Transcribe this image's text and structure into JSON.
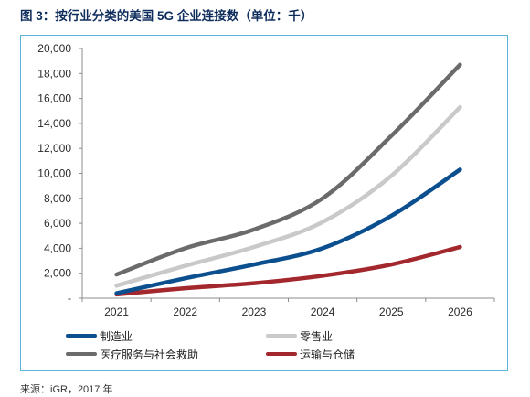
{
  "title": "图 3：按行业分类的美国 5G 企业连接数（单位：千）",
  "source": "来源：iGR，2017 年",
  "colors": {
    "title": "#0e2d5c",
    "frame": "#5ab4d9",
    "axis": "#8c8c8c"
  },
  "chart_data": {
    "type": "line",
    "categories": [
      "2021",
      "2022",
      "2023",
      "2024",
      "2025",
      "2026"
    ],
    "ylim": [
      0,
      20000
    ],
    "ytick_values": [
      0,
      2000,
      4000,
      6000,
      8000,
      10000,
      12000,
      14000,
      16000,
      18000,
      20000
    ],
    "ytick_labels": [
      "-",
      "2,000",
      "4,000",
      "6,000",
      "8,000",
      "10,000",
      "12,000",
      "14,000",
      "16,000",
      "18,000",
      "20,000"
    ],
    "grid": false,
    "smooth": true,
    "legend": "bottom",
    "series": [
      {
        "name": "制造业",
        "color": "#0b4f8f",
        "values": [
          400,
          1600,
          2700,
          4000,
          6600,
          10300
        ]
      },
      {
        "name": "零售业",
        "color": "#c9c9c9",
        "values": [
          1000,
          2600,
          4100,
          6100,
          9800,
          15300
        ]
      },
      {
        "name": "医疗服务与社会救助",
        "color": "#6b6b6b",
        "values": [
          1900,
          4000,
          5500,
          8000,
          13000,
          18700
        ]
      },
      {
        "name": "运输与仓储",
        "color": "#a3282d",
        "values": [
          300,
          800,
          1200,
          1800,
          2700,
          4100
        ]
      }
    ]
  }
}
